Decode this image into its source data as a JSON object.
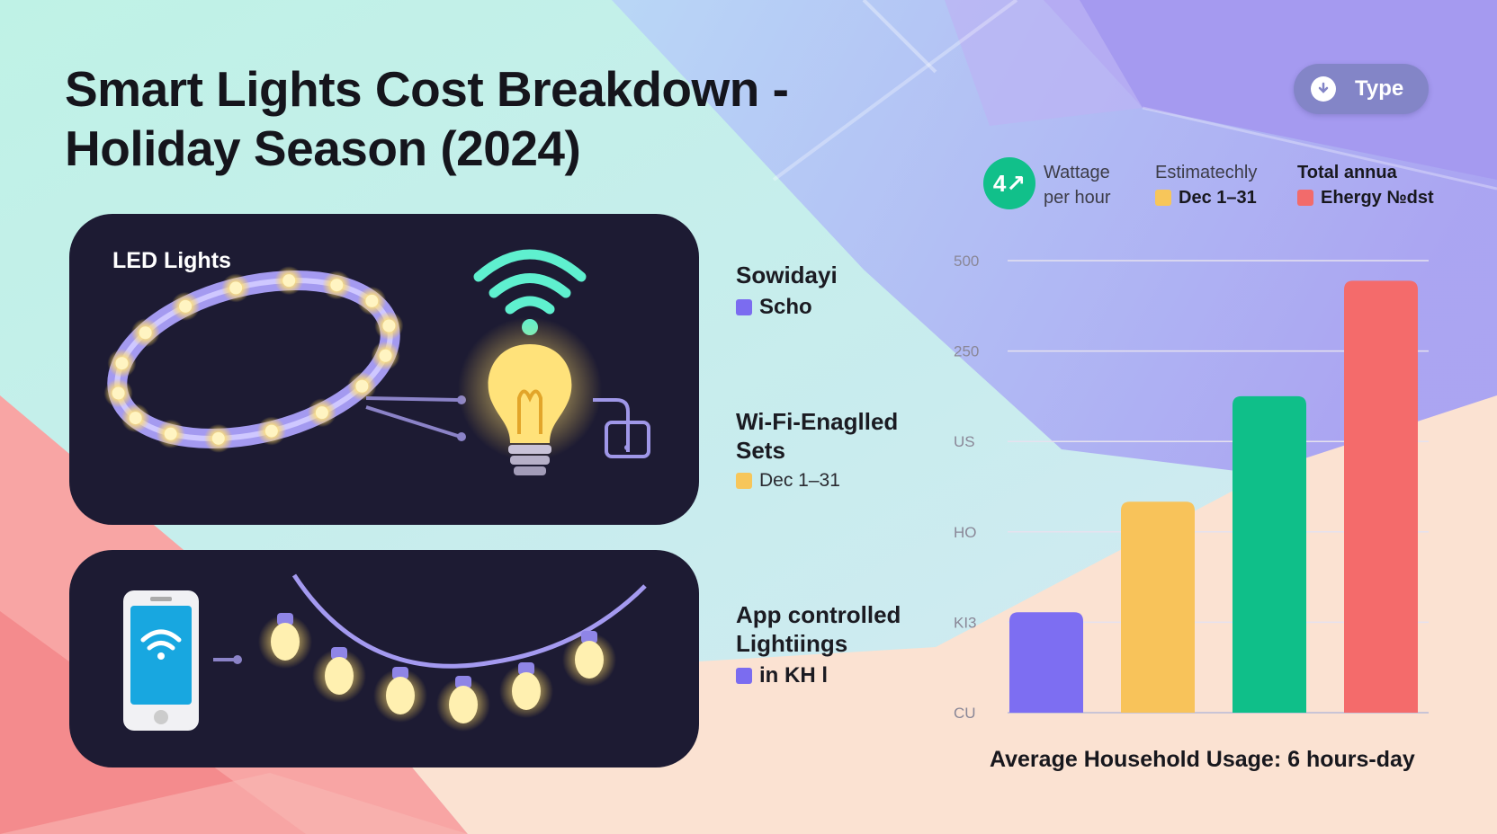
{
  "title": "Smart Lights Cost Breakdown - Holiday Season (2024)",
  "type_button": {
    "label": "Type",
    "icon": "download-arrow-icon"
  },
  "panels": {
    "led_label": "LED Lights"
  },
  "side_labels": [
    {
      "title": "Sowidayi",
      "item": "Scho",
      "color": "#7b6cf0"
    },
    {
      "title": "Wi-Fi-Enaglled Sets",
      "item": "Dec 1–31",
      "color": "#f7c65a"
    },
    {
      "title": "App controlled Lightiings",
      "item": "in KH l",
      "color": "#7b6cf0"
    }
  ],
  "legend": {
    "badge": "4↗",
    "col1": [
      "Wattage",
      "per hour"
    ],
    "col2": {
      "line1": "Estimateсhly",
      "line2": "Dec 1–31",
      "color": "#f7c65a"
    },
    "col3": {
      "line1": "Total annua",
      "line2": "Ehergy №dst",
      "color": "#f26b6b"
    }
  },
  "chart_data": {
    "type": "bar",
    "y_tick_labels": [
      "500",
      "250",
      "US",
      "HO",
      "KI3",
      "СU"
    ],
    "values": [
      100,
      210,
      315,
      430
    ],
    "colors": [
      "#7d6ef2",
      "#f8c35a",
      "#0fbf89",
      "#f46b6b"
    ],
    "ylim": [
      0,
      450
    ],
    "grid": true,
    "caption": "Average Household Usage: 6 hours-day"
  }
}
